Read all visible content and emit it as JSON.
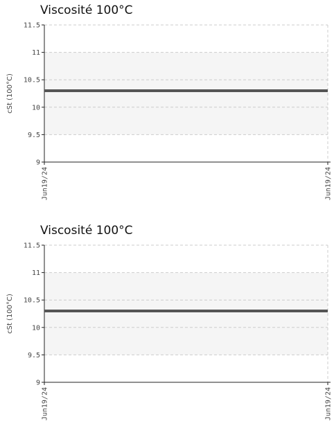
{
  "chart_data": [
    {
      "type": "line",
      "title": "Viscosité 100°C",
      "xlabel": "",
      "ylabel": "cSt (100°C)",
      "ylim": [
        9,
        11.5
      ],
      "yticks": [
        9,
        9.5,
        10,
        10.5,
        11,
        11.5
      ],
      "ytick_labels": [
        "9",
        "9.5",
        "10",
        "10.5",
        "11",
        "11.5"
      ],
      "xtick_labels": [
        "Jun19/24",
        "Jun19/24"
      ],
      "band": [
        9.5,
        11
      ],
      "grid": true,
      "series": [
        {
          "x": [
            "Jun19/24",
            "Jun19/24"
          ],
          "values": [
            10.3,
            10.3
          ]
        }
      ],
      "colors": {
        "line": "#555555",
        "band": "#f5f5f5",
        "grid": "#cccccc",
        "axis": "#222222"
      }
    },
    {
      "type": "line",
      "title": "Viscosité 100°C",
      "xlabel": "",
      "ylabel": "cSt (100°C)",
      "ylim": [
        9,
        11.5
      ],
      "yticks": [
        9,
        9.5,
        10,
        10.5,
        11,
        11.5
      ],
      "ytick_labels": [
        "9",
        "9.5",
        "10",
        "10.5",
        "11",
        "11.5"
      ],
      "xtick_labels": [
        "Jun19/24",
        "Jun19/24"
      ],
      "band": [
        9.5,
        11
      ],
      "grid": true,
      "series": [
        {
          "x": [
            "Jun19/24",
            "Jun19/24"
          ],
          "values": [
            10.3,
            10.3
          ]
        }
      ],
      "colors": {
        "line": "#555555",
        "band": "#f5f5f5",
        "grid": "#cccccc",
        "axis": "#222222"
      }
    }
  ]
}
